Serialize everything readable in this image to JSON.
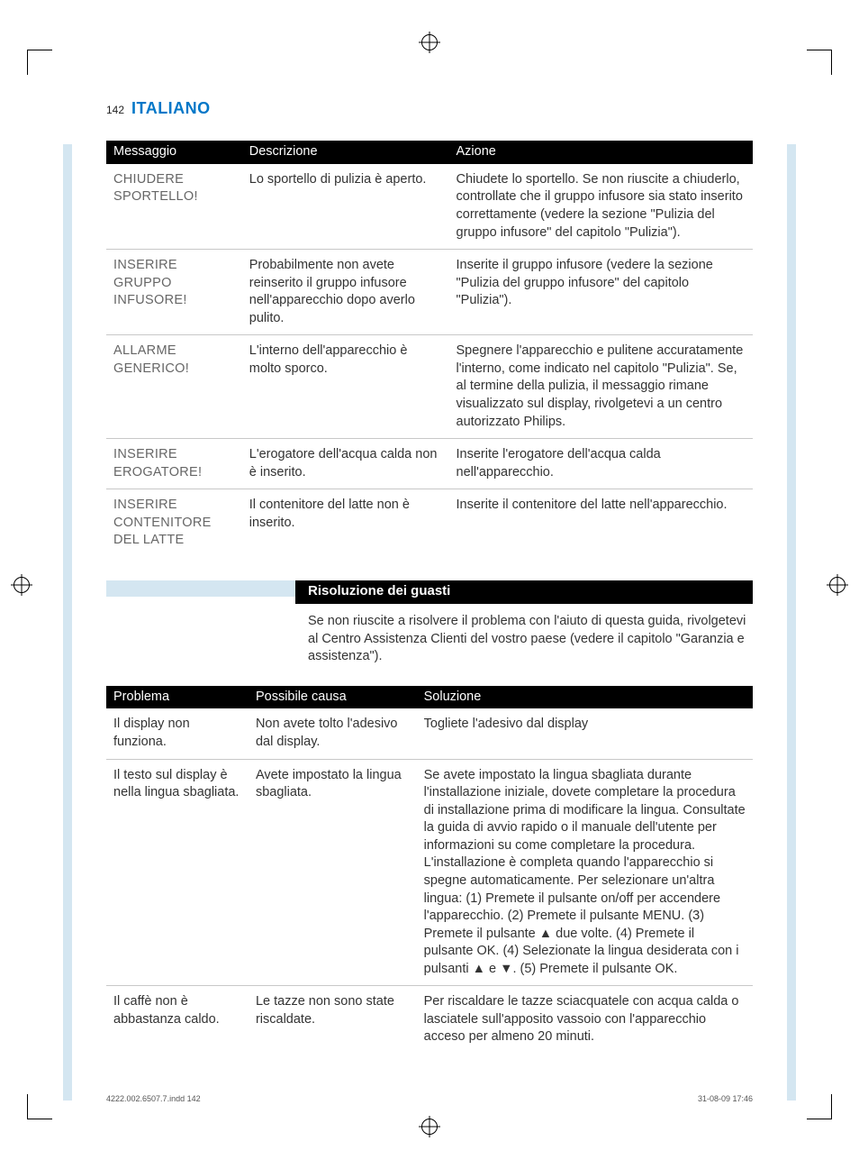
{
  "page_number": "142",
  "section_title": "ITALIANO",
  "colors": {
    "accent_blue": "#0077c8",
    "light_blue": "#d4e6f1",
    "header_bg": "#000000",
    "header_fg": "#ffffff",
    "msg_gray": "#666666",
    "border_gray": "#c8c8c8"
  },
  "table1": {
    "headers": [
      "Messaggio",
      "Descrizione",
      "Azione"
    ],
    "rows": [
      {
        "msg": "CHIUDERE SPORTELLO!",
        "desc": "Lo sportello di pulizia è aperto.",
        "action": "Chiudete lo sportello. Se non riuscite a chiuderlo, controllate che il gruppo infusore sia stato inserito correttamente (vedere la sezione \"Pulizia del gruppo infusore\" del capitolo \"Pulizia\")."
      },
      {
        "msg": "INSERIRE GRUPPO INFUSORE!",
        "desc": "Probabilmente non avete reinserito il gruppo infusore nell'apparecchio dopo averlo pulito.",
        "action": "Inserite il gruppo infusore (vedere la sezione \"Pulizia del gruppo infusore\" del capitolo \"Pulizia\")."
      },
      {
        "msg": "ALLARME GENERICO!",
        "desc": "L'interno dell'apparecchio è molto sporco.",
        "action": "Spegnere l'apparecchio e pulitene accuratamente l'interno, come indicato nel capitolo \"Pulizia\". Se, al termine della pulizia, il messaggio rimane visualizzato sul display, rivolgetevi a un centro autorizzato Philips."
      },
      {
        "msg": "INSERIRE EROGATORE!",
        "desc": "L'erogatore dell'acqua calda non è inserito.",
        "action": "Inserite l'erogatore dell'acqua calda nell'apparecchio."
      },
      {
        "msg": "INSERIRE CONTENITORE DEL LATTE",
        "desc": "Il contenitore del latte non è inserito.",
        "action": "Inserite il contenitore del latte nell'apparecchio."
      }
    ]
  },
  "troubleshoot": {
    "title": "Risoluzione dei guasti",
    "intro": "Se non riuscite a risolvere il problema con l'aiuto di questa guida, rivolgetevi al Centro Assistenza Clienti del vostro paese (vedere il capitolo \"Garanzia e assistenza\")."
  },
  "table2": {
    "headers": [
      "Problema",
      "Possibile causa",
      "Soluzione"
    ],
    "rows": [
      {
        "problem": "Il display non funziona.",
        "cause": "Non avete tolto l'adesivo dal display.",
        "solution": "Togliete l'adesivo dal display"
      },
      {
        "problem": "Il testo sul display è nella lingua sbagliata.",
        "cause": "Avete impostato la lingua sbagliata.",
        "solution": "Se avete impostato la lingua sbagliata durante l'installazione iniziale, dovete completare la procedura di installazione prima di modificare la lingua. Consultate la guida di avvio rapido o il manuale dell'utente per informazioni su come completare la procedura. L'installazione è completa quando l'apparecchio si spegne automaticamente. Per selezionare un'altra lingua: (1) Premete il pulsante on/off per accendere l'apparecchio. (2) Premete il pulsante MENU. (3) Premete il pulsante ▲ due volte. (4) Premete il pulsante OK. (4) Selezionate la lingua desiderata con i pulsanti ▲ e ▼. (5) Premete il pulsante OK."
      },
      {
        "problem": " Il caffè non è abbastanza caldo.",
        "cause": "Le tazze non sono state riscaldate.",
        "solution": "Per riscaldare le tazze sciacquatele con acqua calda o lasciatele sull'apposito vassoio con l'apparecchio acceso per almeno 20 minuti."
      }
    ]
  },
  "footer": {
    "left": "4222.002.6507.7.indd   142",
    "right": "31-08-09   17:46"
  }
}
